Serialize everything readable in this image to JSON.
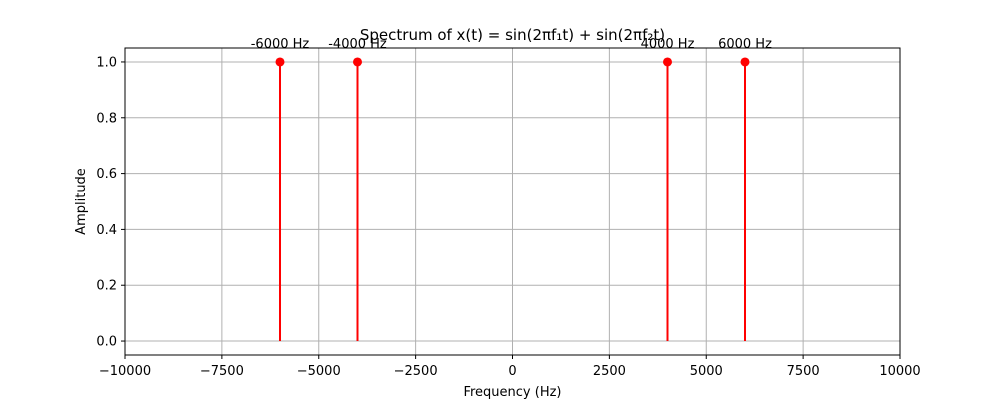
{
  "chart_data": {
    "type": "stem",
    "title": "Spectrum of x(t) = sin(2πf₁t) + sin(2πf₂t)",
    "xlabel": "Frequency (Hz)",
    "ylabel": "Amplitude",
    "xlim": [
      -10000,
      10000
    ],
    "ylim": [
      -0.05,
      1.05
    ],
    "x_ticks": [
      -10000,
      -7500,
      -5000,
      -2500,
      0,
      2500,
      5000,
      7500,
      10000
    ],
    "x_tick_labels": [
      "−10000",
      "−7500",
      "−5000",
      "−2500",
      "0",
      "2500",
      "5000",
      "7500",
      "10000"
    ],
    "y_ticks": [
      0.0,
      0.2,
      0.4,
      0.6,
      0.8,
      1.0
    ],
    "y_tick_labels": [
      "0.0",
      "0.2",
      "0.4",
      "0.6",
      "0.8",
      "1.0"
    ],
    "grid": true,
    "color": "#ff0000",
    "points": [
      {
        "x": -6000,
        "y": 1.0,
        "label": "-6000 Hz"
      },
      {
        "x": -4000,
        "y": 1.0,
        "label": "-4000 Hz"
      },
      {
        "x": 4000,
        "y": 1.0,
        "label": "4000 Hz"
      },
      {
        "x": 6000,
        "y": 1.0,
        "label": "6000 Hz"
      }
    ]
  }
}
